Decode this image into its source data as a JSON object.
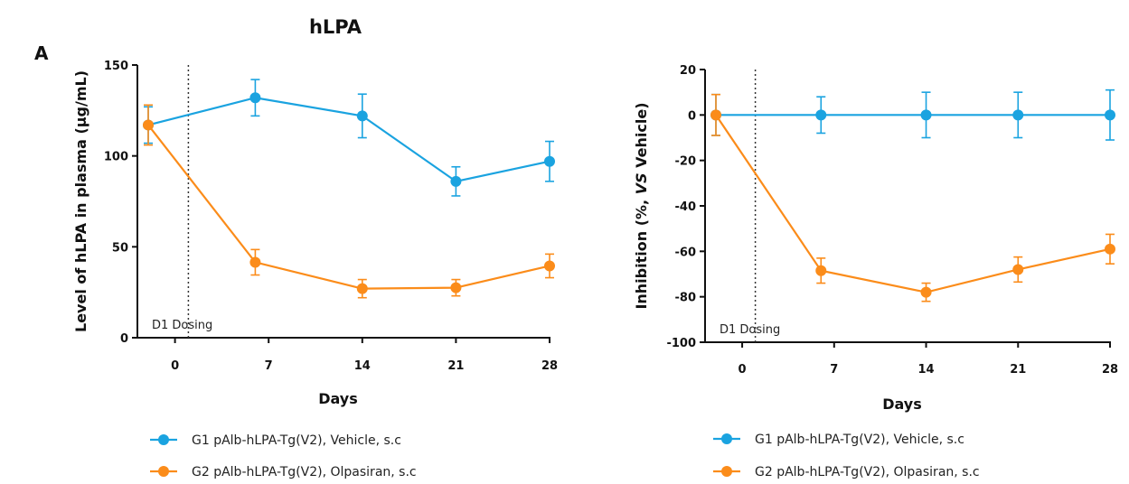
{
  "figure": {
    "title": "hLPA",
    "panel_label": "A"
  },
  "chart_data": [
    {
      "type": "line",
      "xlabel": "Days",
      "ylabel": "Level of hLPA in plasma (µg/mL)",
      "ylabel_parts": [
        "Level of hLPA in plasma (µg/mL)"
      ],
      "xlim": [
        -2,
        28
      ],
      "ylim": [
        0,
        150
      ],
      "x_ticks": [
        0,
        7,
        14,
        21,
        28
      ],
      "y_ticks": [
        0,
        50,
        100,
        150
      ],
      "grid": false,
      "annotation": {
        "text": "D1 Dosing",
        "x": 1
      },
      "series": [
        {
          "name": "G1 pAlb-hLPA-Tg(V2), Vehicle, s.c",
          "color": "#1aa3e0",
          "x": [
            -2,
            6,
            14,
            21,
            28
          ],
          "y": [
            117,
            132,
            122,
            86,
            97
          ],
          "err": [
            10,
            10,
            12,
            8,
            11
          ]
        },
        {
          "name": "G2 pAlb-hLPA-Tg(V2), Olpasiran, s.c",
          "color": "#fb8c1a",
          "x": [
            -2,
            6,
            14,
            21,
            28
          ],
          "y": [
            117,
            41.5,
            27,
            27.5,
            39.5
          ],
          "err": [
            11,
            7,
            5,
            4.5,
            6.5
          ]
        }
      ]
    },
    {
      "type": "line",
      "xlabel": "Days",
      "ylabel": "Inhibition (%, VS Vehicle)",
      "ylabel_parts": [
        "Inhibition (%, ",
        "VS",
        " Vehicle)"
      ],
      "xlim": [
        -2,
        28
      ],
      "ylim": [
        -100,
        20
      ],
      "x_ticks": [
        0,
        7,
        14,
        21,
        28
      ],
      "y_ticks": [
        -100,
        -80,
        -60,
        -40,
        -20,
        0,
        20
      ],
      "grid": false,
      "annotation": {
        "text": "D1 Dosing",
        "x": 1
      },
      "series": [
        {
          "name": "G1 pAlb-hLPA-Tg(V2), Vehicle, s.c",
          "color": "#1aa3e0",
          "x": [
            -2,
            6,
            14,
            21,
            28
          ],
          "y": [
            0,
            0,
            0,
            0,
            0
          ],
          "err": [
            9,
            8,
            10,
            10,
            11
          ]
        },
        {
          "name": "G2 pAlb-hLPA-Tg(V2), Olpasiran, s.c",
          "color": "#fb8c1a",
          "x": [
            -2,
            6,
            14,
            21,
            28
          ],
          "y": [
            0,
            -68.5,
            -78,
            -68,
            -59
          ],
          "err": [
            9,
            5.5,
            4,
            5.5,
            6.5
          ]
        }
      ]
    }
  ]
}
